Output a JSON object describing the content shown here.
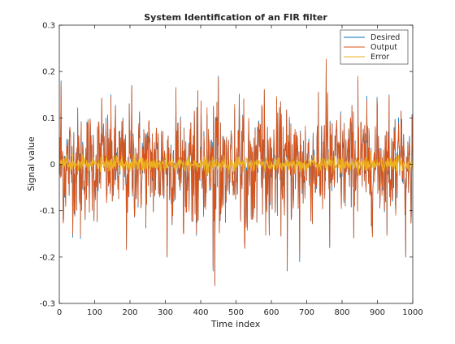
{
  "chart_data": {
    "type": "line",
    "title": "System Identification of an FIR filter",
    "xlabel": "Time index",
    "ylabel": "Signal value",
    "xlim": [
      0,
      1000
    ],
    "ylim": [
      -0.3,
      0.3
    ],
    "x_ticks": [
      "0",
      "100",
      "200",
      "300",
      "400",
      "500",
      "600",
      "700",
      "800",
      "900",
      "1000"
    ],
    "y_ticks": [
      "-0.3",
      "-0.2",
      "-0.1",
      "0",
      "0.1",
      "0.2",
      "0.3"
    ],
    "grid": false,
    "legend_position": "top-right",
    "series": [
      {
        "name": "Desired",
        "color": "#0072BD"
      },
      {
        "name": "Output",
        "color": "#D95319"
      },
      {
        "name": "Error",
        "color": "#EDB120"
      }
    ],
    "x_range_samples": [
      1,
      1000
    ],
    "desired_peaks": [
      {
        "x": 5,
        "y": 0.18
      },
      {
        "x": 12,
        "y": -0.12
      },
      {
        "x": 60,
        "y": -0.16
      },
      {
        "x": 120,
        "y": 0.14
      },
      {
        "x": 190,
        "y": -0.18
      },
      {
        "x": 205,
        "y": 0.17
      },
      {
        "x": 305,
        "y": -0.2
      },
      {
        "x": 330,
        "y": 0.16
      },
      {
        "x": 435,
        "y": -0.23
      },
      {
        "x": 440,
        "y": -0.26
      },
      {
        "x": 450,
        "y": 0.19
      },
      {
        "x": 525,
        "y": -0.18
      },
      {
        "x": 580,
        "y": 0.16
      },
      {
        "x": 645,
        "y": -0.23
      },
      {
        "x": 680,
        "y": -0.21
      },
      {
        "x": 755,
        "y": 0.22
      },
      {
        "x": 765,
        "y": -0.18
      },
      {
        "x": 845,
        "y": 0.18
      },
      {
        "x": 900,
        "y": 0.12
      },
      {
        "x": 980,
        "y": -0.2
      }
    ]
  }
}
